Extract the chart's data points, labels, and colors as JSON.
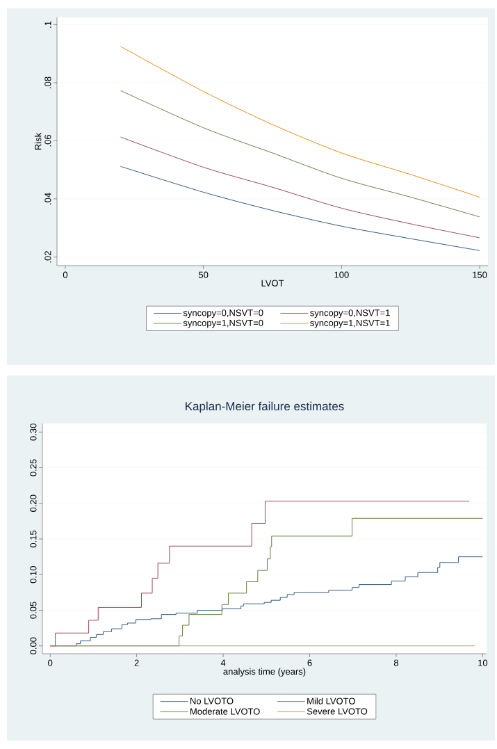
{
  "chart_data": [
    {
      "type": "line",
      "xlabel": "LVOT",
      "ylabel": "Risk",
      "xlim": [
        -3,
        153
      ],
      "ylim": [
        0.017,
        0.1025
      ],
      "xticks": [
        0,
        50,
        100,
        150
      ],
      "yticks": [
        {
          "value": 0.02,
          "label": ".02"
        },
        {
          "value": 0.04,
          "label": ".04"
        },
        {
          "value": 0.06,
          "label": ".06"
        },
        {
          "value": 0.08,
          "label": ".08"
        },
        {
          "value": 0.1,
          "label": ".1"
        }
      ],
      "grid": "y",
      "legend": "bottom",
      "x": [
        20,
        50,
        75,
        100,
        125,
        150
      ],
      "series": [
        {
          "name": "syncopy=0,NSVT=0",
          "color": "#1a476f",
          "values": [
            0.0512,
            0.0423,
            0.036,
            0.0306,
            0.0263,
            0.0222
          ]
        },
        {
          "name": "syncopy=0,NSVT=1",
          "color": "#90353b",
          "values": [
            0.0613,
            0.0509,
            0.044,
            0.0368,
            0.0314,
            0.0266
          ]
        },
        {
          "name": "syncopy=1,NSVT=0",
          "color": "#55752f",
          "values": [
            0.0773,
            0.0645,
            0.0558,
            0.0471,
            0.0406,
            0.0338
          ]
        },
        {
          "name": "syncopy=1,NSVT=1",
          "color": "#e37e00",
          "values": [
            0.0925,
            0.077,
            0.0656,
            0.0558,
            0.0484,
            0.0406
          ]
        }
      ]
    },
    {
      "type": "step",
      "title": "Kaplan-Meier failure estimates",
      "xlabel": "analysis time (years)",
      "xlim": [
        -0.18,
        10.09
      ],
      "ylim": [
        -0.011,
        0.312
      ],
      "xticks": [
        0,
        2,
        4,
        6,
        8,
        10
      ],
      "yticks": [
        {
          "value": 0,
          "label": "0.00"
        },
        {
          "value": 0.05,
          "label": "0.05"
        },
        {
          "value": 0.1,
          "label": "0.10"
        },
        {
          "value": 0.15,
          "label": "0.15"
        },
        {
          "value": 0.2,
          "label": "0.20"
        },
        {
          "value": 0.25,
          "label": "0.25"
        },
        {
          "value": 0.3,
          "label": "0.30"
        }
      ],
      "grid": "y",
      "legend": "bottom",
      "series": [
        {
          "name": "No LVOTO",
          "color": "#1a476f",
          "x": [
            0,
            0.6,
            0.7,
            0.93,
            1.07,
            1.23,
            1.42,
            1.66,
            1.79,
            1.98,
            2.33,
            2.57,
            2.91,
            3.4,
            3.98,
            4.41,
            4.47,
            4.95,
            5.11,
            5.32,
            5.48,
            5.64,
            6.44,
            6.98,
            7.14,
            7.89,
            8.21,
            8.5,
            8.96,
            9.01,
            9.44,
            10.0
          ],
          "values": [
            0,
            0.003,
            0.007,
            0.012,
            0.016,
            0.02,
            0.024,
            0.03,
            0.032,
            0.037,
            0.038,
            0.044,
            0.046,
            0.05,
            0.052,
            0.056,
            0.059,
            0.061,
            0.064,
            0.068,
            0.072,
            0.075,
            0.078,
            0.082,
            0.086,
            0.091,
            0.097,
            0.103,
            0.11,
            0.117,
            0.125,
            0.125
          ]
        },
        {
          "name": "Mild LVOTO",
          "color": "#90353b",
          "x": [
            0,
            0.12,
            0.89,
            1.11,
            2.11,
            2.36,
            2.49,
            2.76,
            4.66,
            4.97,
            9.69
          ],
          "values": [
            0,
            0.018,
            0.036,
            0.054,
            0.074,
            0.095,
            0.116,
            0.14,
            0.172,
            0.203,
            0.203
          ]
        },
        {
          "name": "Moderate LVOTO",
          "color": "#55752f",
          "x": [
            0,
            2.98,
            3.06,
            3.21,
            3.97,
            4.12,
            4.54,
            4.8,
            5.02,
            5.09,
            5.12,
            6.98,
            10.0
          ],
          "values": [
            0,
            0.014,
            0.029,
            0.044,
            0.058,
            0.074,
            0.09,
            0.106,
            0.122,
            0.139,
            0.154,
            0.179,
            0.179
          ]
        },
        {
          "name": "Severe LVOTO",
          "color": "#e37e00",
          "x": [
            0,
            9.81
          ],
          "values": [
            0,
            0
          ]
        }
      ]
    }
  ]
}
